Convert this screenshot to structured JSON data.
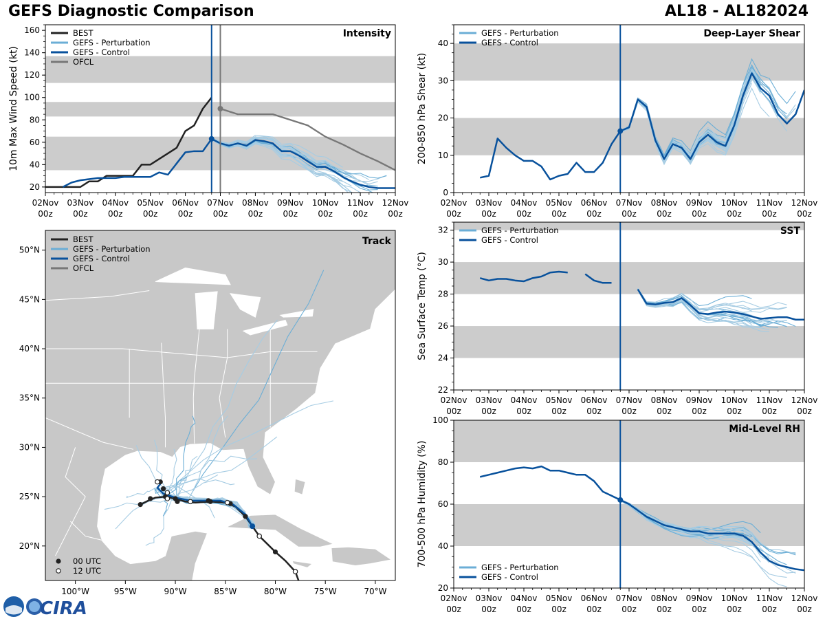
{
  "header": {
    "title": "GEFS Diagnostic Comparison",
    "storm": "AL18 - AL182024",
    "logo_text": "CIRA"
  },
  "colors": {
    "best": "#222222",
    "perturbation": "#6baed6",
    "perturbation_thin": "#a6cce3",
    "control": "#08519c",
    "ofcl": "#777777",
    "band": "#cccccc",
    "land": "#c8c8c8",
    "water": "#ffffff"
  },
  "time_axis": {
    "ticks": [
      {
        "t": 0,
        "label": "02Nov\n00z"
      },
      {
        "t": 1,
        "label": "03Nov\n00z"
      },
      {
        "t": 2,
        "label": "04Nov\n00z"
      },
      {
        "t": 3,
        "label": "05Nov\n00z"
      },
      {
        "t": 4,
        "label": "06Nov\n00z"
      },
      {
        "t": 5,
        "label": "07Nov\n00z"
      },
      {
        "t": 6,
        "label": "08Nov\n00z"
      },
      {
        "t": 7,
        "label": "09Nov\n00z"
      },
      {
        "t": 8,
        "label": "10Nov\n00z"
      },
      {
        "t": 9,
        "label": "11Nov\n00z"
      },
      {
        "t": 10,
        "label": "12Nov\n00z"
      }
    ],
    "init_time": 4.75,
    "ofcl_time": 5.0
  },
  "chart_data": [
    {
      "id": "intensity",
      "type": "line",
      "title": "Intensity",
      "ylabel": "10m Max Wind Speed (kt)",
      "xlim": [
        0,
        10
      ],
      "ylim": [
        15,
        165
      ],
      "yticks": [
        20,
        40,
        60,
        80,
        100,
        120,
        140,
        160
      ],
      "bands": [
        [
          35,
          65
        ],
        [
          83,
          96
        ],
        [
          113,
          137
        ]
      ],
      "legend": [
        "BEST",
        "GEFS - Perturbation",
        "GEFS - Control",
        "OFCL"
      ],
      "series": [
        {
          "name": "BEST",
          "x": [
            0,
            0.25,
            0.5,
            0.75,
            1.0,
            1.25,
            1.5,
            1.75,
            2.0,
            2.25,
            2.5,
            2.75,
            3.0,
            3.25,
            3.5,
            3.75,
            4.0,
            4.25,
            4.5,
            4.75
          ],
          "y": [
            20,
            20,
            20,
            20,
            20,
            25,
            25,
            30,
            30,
            30,
            30,
            40,
            40,
            45,
            50,
            55,
            70,
            75,
            90,
            100
          ]
        },
        {
          "name": "GEFS - Control",
          "x": [
            0.5,
            0.75,
            1.0,
            1.25,
            1.5,
            1.75,
            2.0,
            2.25,
            2.5,
            2.75,
            3.0,
            3.25,
            3.5,
            3.75,
            4.0,
            4.25,
            4.5,
            4.75,
            5.0,
            5.25,
            5.5,
            5.75,
            6.0,
            6.25,
            6.5,
            6.75,
            7.0,
            7.25,
            7.5,
            7.75,
            8.0,
            8.25,
            8.5,
            8.75,
            9.0,
            9.25,
            9.5,
            9.75,
            10.0
          ],
          "y": [
            20,
            24,
            26,
            27,
            28,
            28,
            28,
            29,
            29,
            29,
            29,
            33,
            31,
            41,
            51,
            52,
            52,
            63,
            59,
            57,
            59,
            57,
            62,
            61,
            59,
            52,
            52,
            48,
            43,
            38,
            38,
            34,
            29,
            25,
            22,
            20,
            19,
            19,
            19
          ]
        },
        {
          "name": "OFCL",
          "x": [
            5.0,
            5.5,
            6.0,
            6.5,
            7.0,
            7.5,
            8.0,
            8.5,
            9.0,
            9.5,
            10.0
          ],
          "y": [
            90,
            85,
            85,
            85,
            80,
            75,
            65,
            58,
            50,
            43,
            35
          ]
        }
      ]
    },
    {
      "id": "shear",
      "type": "line",
      "title": "Deep-Layer Shear",
      "ylabel": "200-850 hPa Shear (kt)",
      "xlim": [
        0,
        10
      ],
      "ylim": [
        0,
        45
      ],
      "yticks": [
        0,
        10,
        20,
        30,
        40
      ],
      "bands": [
        [
          10,
          20
        ],
        [
          30,
          40
        ]
      ],
      "legend": [
        "GEFS - Perturbation",
        "GEFS - Control"
      ],
      "series": [
        {
          "name": "GEFS - Control",
          "x": [
            0.75,
            1.0,
            1.25,
            1.5,
            1.75,
            2.0,
            2.25,
            2.5,
            2.75,
            3.0,
            3.25,
            3.5,
            3.75,
            4.0,
            4.25,
            4.5,
            4.75,
            5.0,
            5.25,
            5.5,
            5.75,
            6.0,
            6.25,
            6.5,
            6.75,
            7.0,
            7.25,
            7.5,
            7.75,
            8.0,
            8.25,
            8.5,
            8.75,
            9.0,
            9.25,
            9.5,
            9.75,
            10.0
          ],
          "y": [
            4,
            4.5,
            14.5,
            12,
            10,
            8.5,
            8.5,
            7,
            3.5,
            4.5,
            5,
            8,
            5.5,
            5.5,
            8,
            13,
            16.5,
            17.5,
            25,
            23,
            14,
            9,
            13,
            12,
            9,
            13.5,
            15.5,
            13.5,
            12.5,
            18,
            26,
            32,
            28,
            26,
            21,
            18.5,
            21,
            27.5
          ]
        }
      ]
    },
    {
      "id": "sst",
      "type": "line",
      "title": "SST",
      "ylabel": "Sea Surface Temp (°C)",
      "xlim": [
        0,
        10
      ],
      "ylim": [
        22,
        32.5
      ],
      "yticks": [
        22,
        24,
        26,
        28,
        30,
        32
      ],
      "bands": [
        [
          24,
          26
        ],
        [
          28,
          30
        ],
        [
          32,
          32.5
        ]
      ],
      "legend": [
        "GEFS - Perturbation",
        "GEFS - Control"
      ],
      "series": [
        {
          "name": "GEFS - Control",
          "x": [
            0.75,
            1.0,
            1.25,
            1.5,
            1.75,
            2.0,
            2.25,
            2.5,
            2.75,
            3.0,
            3.25
          ],
          "y": [
            29.0,
            28.85,
            28.95,
            28.95,
            28.85,
            28.8,
            29.0,
            29.1,
            29.35,
            29.4,
            29.35
          ]
        },
        {
          "name": "GEFS - Control",
          "x": [
            3.75,
            4.0,
            4.25,
            4.5
          ],
          "y": [
            29.25,
            28.85,
            28.7,
            28.7
          ]
        },
        {
          "name": "GEFS - Control",
          "x": [
            5.25,
            5.5,
            5.75,
            6.0,
            6.25,
            6.5,
            6.75,
            7.0,
            7.25,
            7.5,
            7.75,
            8.0,
            8.25,
            8.5,
            8.75,
            9.0,
            9.25,
            9.5,
            9.75,
            10.0
          ],
          "y": [
            28.3,
            27.4,
            27.35,
            27.45,
            27.5,
            27.75,
            27.3,
            26.8,
            26.75,
            26.85,
            26.9,
            26.85,
            26.75,
            26.6,
            26.45,
            26.5,
            26.55,
            26.55,
            26.4,
            26.4
          ]
        }
      ]
    },
    {
      "id": "rh",
      "type": "line",
      "title": "Mid-Level RH",
      "ylabel": "700-500 hPa Humidity (%)",
      "xlim": [
        0,
        10
      ],
      "ylim": [
        20,
        100
      ],
      "yticks": [
        20,
        40,
        60,
        80,
        100
      ],
      "bands": [
        [
          40,
          60
        ],
        [
          80,
          100
        ]
      ],
      "legend": [
        "GEFS - Perturbation",
        "GEFS - Control"
      ],
      "series": [
        {
          "name": "GEFS - Control",
          "x": [
            0.75,
            1.0,
            1.25,
            1.5,
            1.75,
            2.0,
            2.25,
            2.5,
            2.75,
            3.0,
            3.25,
            3.5,
            3.75,
            4.0,
            4.25,
            4.5,
            4.75,
            5.0,
            5.25,
            5.5,
            5.75,
            6.0,
            6.25,
            6.5,
            6.75,
            7.0,
            7.25,
            7.5,
            7.75,
            8.0,
            8.25,
            8.5,
            8.75,
            9.0,
            9.25,
            9.5,
            9.75,
            10.0
          ],
          "y": [
            73,
            74,
            75,
            76,
            77,
            77.5,
            77,
            78,
            76,
            76,
            75,
            74,
            74,
            71,
            66,
            64,
            62,
            60,
            57,
            54,
            52,
            50,
            49,
            48,
            47,
            47,
            46,
            46,
            46,
            46,
            45,
            42,
            37,
            33,
            31,
            30,
            29,
            28.5
          ]
        }
      ]
    },
    {
      "id": "track",
      "type": "scatter",
      "title": "Track",
      "xlim": [
        -103,
        -68
      ],
      "ylim": [
        16.5,
        52
      ],
      "xticks": [
        {
          "v": -100,
          "label": "100°W"
        },
        {
          "v": -95,
          "label": "95°W"
        },
        {
          "v": -90,
          "label": "90°W"
        },
        {
          "v": -85,
          "label": "85°W"
        },
        {
          "v": -80,
          "label": "80°W"
        },
        {
          "v": -75,
          "label": "75°W"
        },
        {
          "v": -70,
          "label": "70°W"
        }
      ],
      "yticks": [
        {
          "v": 20,
          "label": "20°N"
        },
        {
          "v": 25,
          "label": "25°N"
        },
        {
          "v": 30,
          "label": "30°N"
        },
        {
          "v": 35,
          "label": "35°N"
        },
        {
          "v": 40,
          "label": "40°N"
        },
        {
          "v": 45,
          "label": "45°N"
        },
        {
          "v": 50,
          "label": "50°N"
        }
      ],
      "legend": [
        "BEST",
        "GEFS - Perturbation",
        "GEFS - Control",
        "OFCL"
      ],
      "time_legend": [
        "00 UTC",
        "12 UTC"
      ],
      "best_track": [
        [
          -77.5,
          16.0
        ],
        [
          -78.0,
          17.4
        ],
        [
          -79.0,
          18.5
        ],
        [
          -80.0,
          19.4
        ],
        [
          -80.8,
          20.2
        ],
        [
          -81.6,
          21.0
        ],
        [
          -82.3,
          22.0
        ],
        [
          -83.0,
          23.0
        ],
        [
          -84.0,
          24.0
        ],
        [
          -85.0,
          24.4
        ],
        [
          -86.5,
          24.5
        ],
        [
          -88.0,
          24.4
        ],
        [
          -89.0,
          24.5
        ],
        [
          -90.0,
          24.8
        ],
        [
          -91.0,
          25.0
        ],
        [
          -92.0,
          24.9
        ],
        [
          -92.5,
          24.7
        ],
        [
          -93.5,
          24.2
        ]
      ],
      "best_00utc": [
        [
          -80.0,
          19.4
        ],
        [
          -83.0,
          23.0
        ],
        [
          -86.5,
          24.5
        ],
        [
          -90.0,
          24.8
        ],
        [
          -91.0,
          25.0
        ],
        [
          -93.5,
          24.2
        ],
        [
          -91.5,
          26.5
        ],
        [
          -91.2,
          25.8
        ],
        [
          -89.8,
          24.5
        ],
        [
          -92.5,
          24.8
        ],
        [
          -86.7,
          24.6
        ],
        [
          -84.5,
          24.3
        ]
      ],
      "best_12utc": [
        [
          -78.0,
          17.4
        ],
        [
          -81.6,
          21.0
        ],
        [
          -84.8,
          24.4
        ],
        [
          -88.5,
          24.5
        ],
        [
          -90.8,
          25.4
        ],
        [
          -91.8,
          26.5
        ],
        [
          -90.8,
          24.8
        ],
        [
          -82.3,
          22.0
        ]
      ],
      "control_track": [
        [
          -82.3,
          22.0
        ],
        [
          -83.0,
          23.2
        ],
        [
          -84.2,
          24.2
        ],
        [
          -85.5,
          24.6
        ],
        [
          -87.0,
          24.6
        ],
        [
          -88.5,
          24.6
        ],
        [
          -90.0,
          24.9
        ],
        [
          -91.2,
          25.3
        ],
        [
          -91.8,
          25.9
        ],
        [
          -91.5,
          26.3
        ]
      ]
    }
  ]
}
